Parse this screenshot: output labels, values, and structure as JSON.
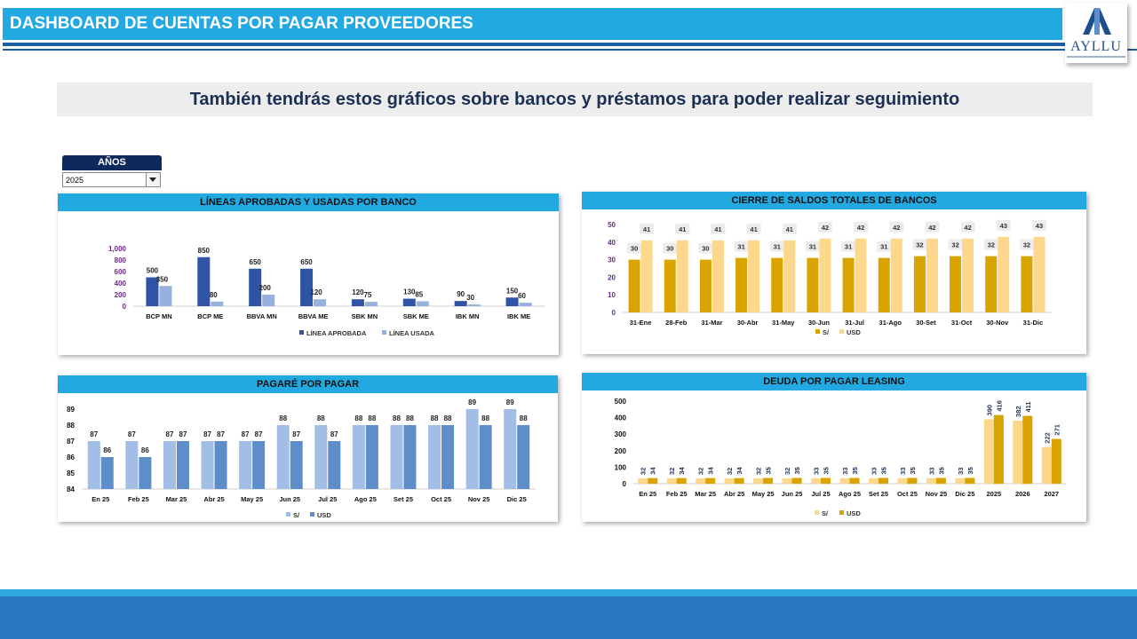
{
  "header": {
    "title": "DASHBOARD DE CUENTAS POR PAGAR PROVEEDORES"
  },
  "logo": {
    "text": "AYLLU"
  },
  "banner": {
    "text": "También tendrás estos gráficos sobre bancos y préstamos para poder realizar seguimiento"
  },
  "filter": {
    "label": "AÑOS",
    "value": "2025"
  },
  "colors": {
    "header": "#23a9e1",
    "navy": "#1f3f7f",
    "lightblue": "#8fa9dc",
    "gold": "#d9a300",
    "cream": "#fdd88c",
    "steel": "#5d8ec9",
    "paleblue": "#a2bde6"
  },
  "chart_data": [
    {
      "type": "bar",
      "title": "LÍNEAS  APROBADAS Y USADAS POR BANCO",
      "categories": [
        "BCP MN",
        "BCP ME",
        "BBVA MN",
        "BBVA ME",
        "SBK MN",
        "SBK ME",
        "IBK MN",
        "IBK ME"
      ],
      "series": [
        {
          "name": "LÍNEA APROBADA",
          "values": [
            500,
            850,
            650,
            650,
            120,
            130,
            90,
            150
          ]
        },
        {
          "name": "LÍNEA USADA",
          "values": [
            350,
            80,
            200,
            120,
            75,
            85,
            30,
            60
          ]
        }
      ],
      "yticks": [
        "1,000",
        "800",
        "600",
        "400",
        "200",
        "0"
      ],
      "ylim": [
        0,
        1000
      ],
      "legend": "bottom"
    },
    {
      "type": "bar",
      "title": "CIERRE DE SALDOS TOTALES  DE BANCOS",
      "categories": [
        "31-Ene",
        "28-Feb",
        "31-Mar",
        "30-Abr",
        "31-May",
        "30-Jun",
        "31-Jul",
        "31-Ago",
        "30-Set",
        "31-Oct",
        "30-Nov",
        "31-Dic"
      ],
      "series": [
        {
          "name": "S/",
          "values": [
            30,
            30,
            30,
            31,
            31,
            31,
            31,
            31,
            32,
            32,
            32,
            32
          ]
        },
        {
          "name": "USD",
          "values": [
            41,
            41,
            41,
            41,
            41,
            42,
            42,
            42,
            42,
            42,
            43,
            43
          ]
        }
      ],
      "yticks": [
        "50",
        "40",
        "30",
        "20",
        "10",
        "0"
      ],
      "ylim": [
        0,
        50
      ],
      "legend": "bottom-left"
    },
    {
      "type": "bar",
      "title": "PAGARÉ POR PAGAR",
      "categories": [
        "En 25",
        "Feb 25",
        "Mar 25",
        "Abr 25",
        "May 25",
        "Jun 25",
        "Jul 25",
        "Ago 25",
        "Set 25",
        "Oct 25",
        "Nov 25",
        "Dic 25"
      ],
      "series": [
        {
          "name": "S/",
          "values": [
            87,
            87,
            87,
            87,
            87,
            88,
            88,
            88,
            88,
            88,
            89,
            89
          ]
        },
        {
          "name": "USD",
          "values": [
            86,
            86,
            87,
            87,
            87,
            87,
            87,
            88,
            88,
            88,
            88,
            88
          ]
        }
      ],
      "yticks": [
        "89",
        "88",
        "87",
        "86",
        "85",
        "84"
      ],
      "ylim": [
        84,
        89
      ],
      "legend": "bottom"
    },
    {
      "type": "bar",
      "title": "DEUDA POR  PAGAR LEASING",
      "categories": [
        "En 25",
        "Feb 25",
        "Mar 25",
        "Abr 25",
        "May 25",
        "Jun 25",
        "Jul 25",
        "Ago 25",
        "Set 25",
        "Oct 25",
        "Nov 25",
        "Dic 25",
        "2025",
        "2026",
        "2027"
      ],
      "series": [
        {
          "name": "S/",
          "values": [
            32,
            32,
            32,
            32,
            32,
            32,
            33,
            33,
            33,
            33,
            33,
            33,
            390,
            382,
            222
          ]
        },
        {
          "name": "USD",
          "values": [
            34,
            34,
            34,
            34,
            35,
            35,
            35,
            35,
            35,
            35,
            35,
            35,
            416,
            411,
            271
          ]
        }
      ],
      "yticks": [
        "500",
        "400",
        "300",
        "200",
        "100",
        "0"
      ],
      "ylim": [
        0,
        500
      ],
      "legend": "bottom"
    }
  ]
}
